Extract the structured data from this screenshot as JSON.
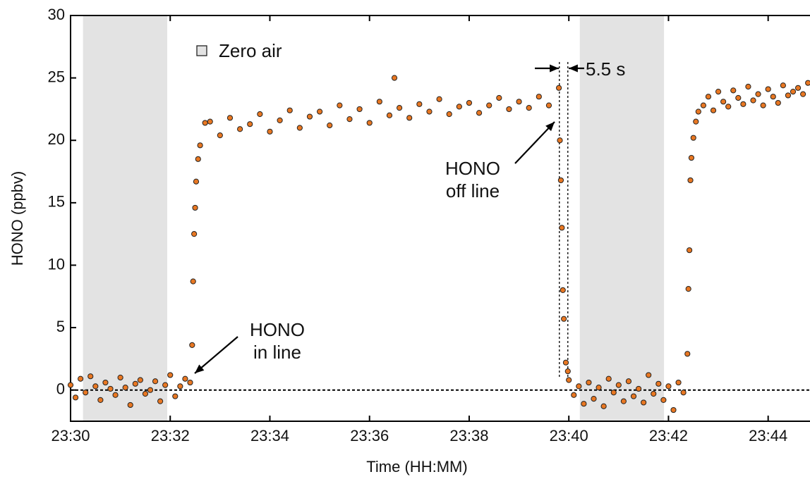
{
  "chart_data": {
    "type": "scatter",
    "xlabel": "Time (HH:MM)",
    "ylabel": "HONO (ppbv)",
    "xlim": [
      1410,
      1424.84
    ],
    "ylim": [
      -2.5,
      30
    ],
    "xticks": [
      {
        "value": 1410,
        "label": "23:30"
      },
      {
        "value": 1412,
        "label": "23:32"
      },
      {
        "value": 1414,
        "label": "23:34"
      },
      {
        "value": 1416,
        "label": "23:36"
      },
      {
        "value": 1418,
        "label": "23:38"
      },
      {
        "value": 1420,
        "label": "23:40"
      },
      {
        "value": 1422,
        "label": "23:42"
      },
      {
        "value": 1424,
        "label": "23:44"
      }
    ],
    "yticks": [
      0,
      5,
      10,
      15,
      20,
      25,
      30
    ],
    "hline": 0,
    "shade_label": "Zero air",
    "shade_color": "#e3e3e3",
    "shaded_regions": [
      [
        1410.25,
        1411.94
      ],
      [
        1420.22,
        1421.91
      ]
    ],
    "marker_lines_x": [
      1419.81,
      1419.98
    ],
    "annotations": [
      [
        "HONO",
        "in line"
      ],
      [
        "HONO",
        "off line"
      ],
      [
        "5.5 s"
      ]
    ],
    "series": [
      {
        "color": "#e87722",
        "x": [
          1410.0,
          1410.1,
          1410.2,
          1410.3,
          1410.4,
          1410.5,
          1410.6,
          1410.7,
          1410.8,
          1410.9,
          1411.0,
          1411.1,
          1411.2,
          1411.3,
          1411.4,
          1411.5,
          1411.6,
          1411.7,
          1411.8,
          1411.9,
          1412.0,
          1412.1,
          1412.2,
          1412.3,
          1412.4,
          1412.44,
          1412.46,
          1412.48,
          1412.5,
          1412.52,
          1412.56,
          1412.6,
          1412.7,
          1412.8,
          1413.0,
          1413.2,
          1413.4,
          1413.6,
          1413.8,
          1414.0,
          1414.2,
          1414.4,
          1414.6,
          1414.8,
          1415.0,
          1415.2,
          1415.4,
          1415.6,
          1415.8,
          1416.0,
          1416.2,
          1416.4,
          1416.5,
          1416.6,
          1416.8,
          1417.0,
          1417.2,
          1417.4,
          1417.6,
          1417.8,
          1418.0,
          1418.2,
          1418.4,
          1418.6,
          1418.8,
          1419.0,
          1419.2,
          1419.4,
          1419.6,
          1419.8,
          1419.82,
          1419.84,
          1419.86,
          1419.88,
          1419.9,
          1419.94,
          1419.98,
          1420.0,
          1420.1,
          1420.2,
          1420.3,
          1420.4,
          1420.5,
          1420.6,
          1420.7,
          1420.8,
          1420.9,
          1421.0,
          1421.1,
          1421.2,
          1421.3,
          1421.4,
          1421.5,
          1421.6,
          1421.7,
          1421.8,
          1421.9,
          1422.0,
          1422.1,
          1422.2,
          1422.3,
          1422.38,
          1422.4,
          1422.42,
          1422.44,
          1422.46,
          1422.5,
          1422.55,
          1422.6,
          1422.7,
          1422.8,
          1422.9,
          1423.0,
          1423.1,
          1423.2,
          1423.3,
          1423.4,
          1423.5,
          1423.6,
          1423.7,
          1423.8,
          1423.9,
          1424.0,
          1424.1,
          1424.2,
          1424.3,
          1424.4,
          1424.5,
          1424.6,
          1424.7,
          1424.8
        ],
        "values": [
          0.4,
          -0.6,
          0.9,
          -0.2,
          1.1,
          0.3,
          -0.8,
          0.6,
          0.1,
          -0.4,
          1.0,
          0.2,
          -1.2,
          0.5,
          0.8,
          -0.3,
          0.0,
          0.7,
          -0.9,
          0.4,
          1.2,
          -0.5,
          0.3,
          0.9,
          0.6,
          3.6,
          8.7,
          12.5,
          14.6,
          16.7,
          18.5,
          19.6,
          21.4,
          21.5,
          20.4,
          21.8,
          20.9,
          21.3,
          22.1,
          20.7,
          21.6,
          22.4,
          21.0,
          21.9,
          22.3,
          21.2,
          22.8,
          21.7,
          22.5,
          21.4,
          23.1,
          22.0,
          25.0,
          22.6,
          21.8,
          22.9,
          22.3,
          23.3,
          22.1,
          22.7,
          23.0,
          22.2,
          22.8,
          23.4,
          22.5,
          23.1,
          22.6,
          23.5,
          22.8,
          24.2,
          20.0,
          16.8,
          13.0,
          8.0,
          5.7,
          2.2,
          1.5,
          0.8,
          -0.4,
          0.3,
          -1.1,
          0.6,
          -0.7,
          0.2,
          -1.3,
          0.9,
          -0.2,
          0.4,
          -0.9,
          0.7,
          -0.5,
          0.1,
          -1.0,
          1.2,
          -0.3,
          0.5,
          -0.8,
          0.3,
          -1.6,
          0.6,
          -0.2,
          2.9,
          8.1,
          11.2,
          16.8,
          18.6,
          20.2,
          21.5,
          22.3,
          22.8,
          23.5,
          22.4,
          23.9,
          23.1,
          22.7,
          24.0,
          23.4,
          22.9,
          24.3,
          23.2,
          23.7,
          22.8,
          24.1,
          23.5,
          23.0,
          24.4,
          23.6,
          23.9,
          24.2,
          23.7,
          24.6
        ]
      }
    ]
  }
}
